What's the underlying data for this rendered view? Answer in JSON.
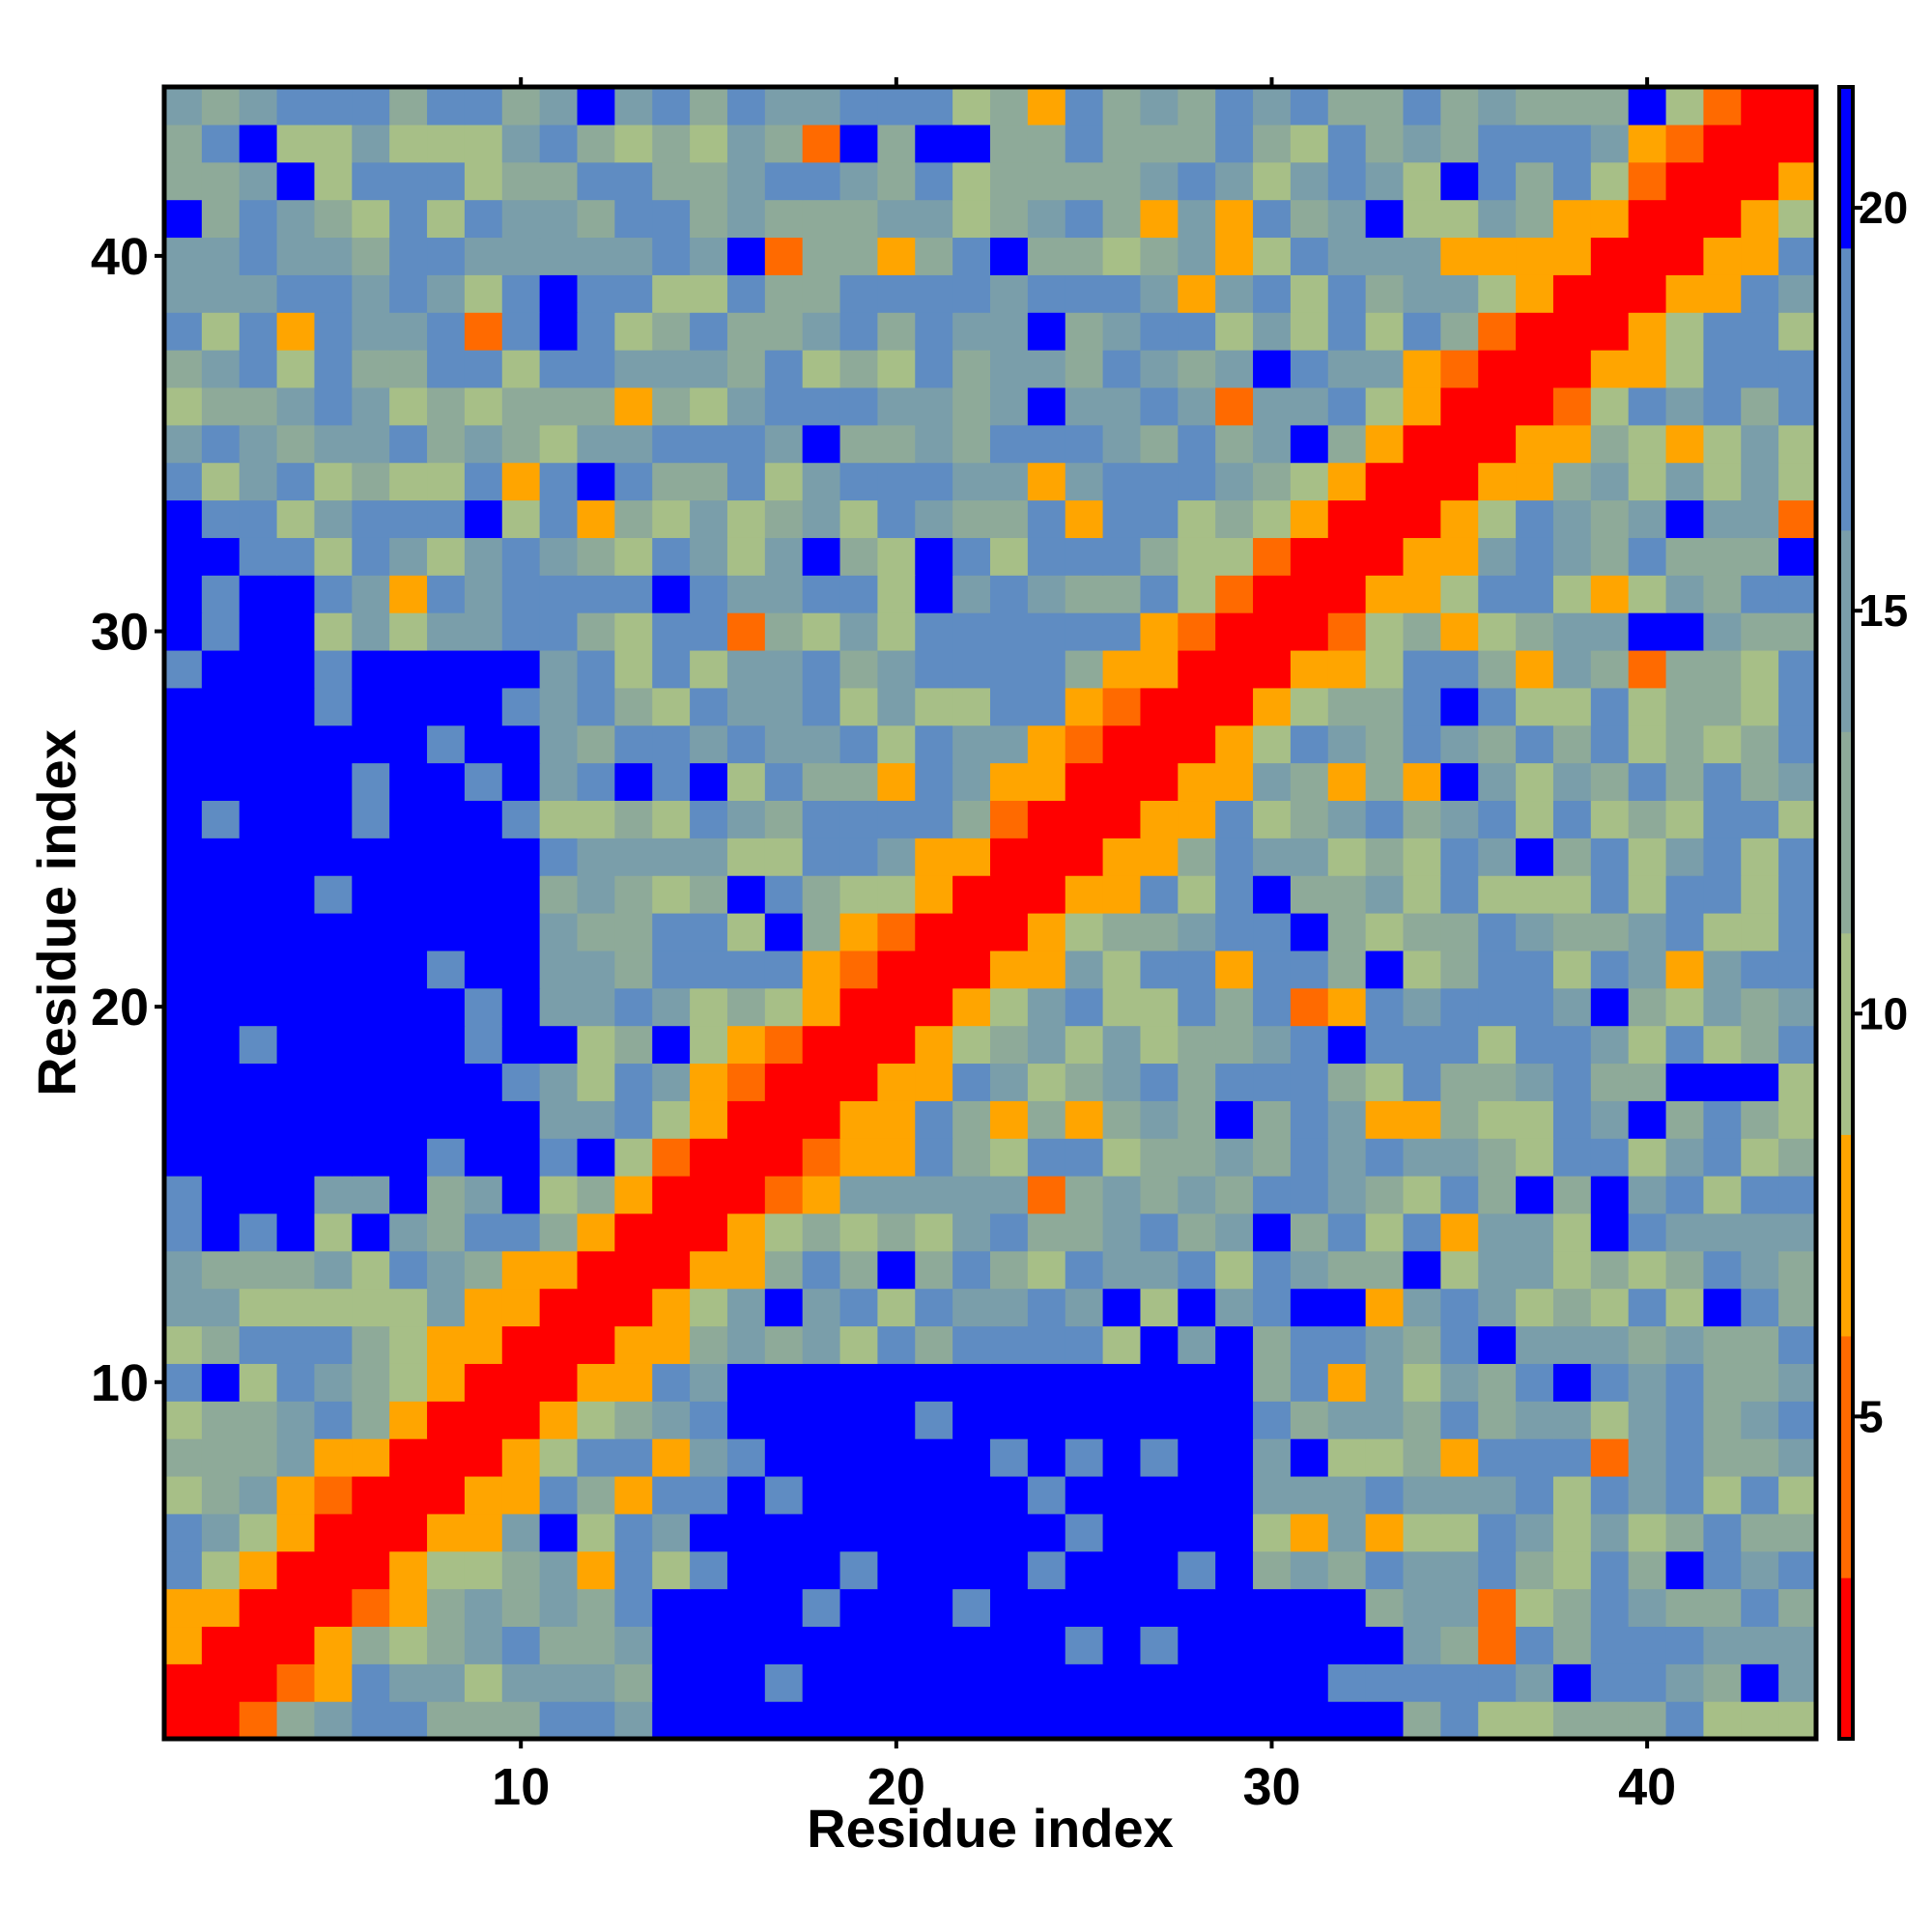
{
  "chart_data": {
    "type": "heatmap",
    "title": "",
    "xlabel": "Residue index",
    "ylabel": "Residue index",
    "n": 44,
    "xlim": [
      1,
      44
    ],
    "ylim": [
      1,
      44
    ],
    "x_ticks": [
      10,
      20,
      30,
      40
    ],
    "y_ticks": [
      10,
      20,
      30,
      40
    ],
    "colorbar": {
      "ticks": [
        5,
        10,
        15,
        20
      ],
      "range": [
        1,
        21.5
      ],
      "colors": [
        "#ff0000",
        "#ff6a00",
        "#ffa500",
        "#a7bf87",
        "#8eaa99",
        "#7a9eaa",
        "#5f8cc2",
        "#0000ff"
      ],
      "bins": [
        1,
        3,
        6,
        8.5,
        11,
        13.5,
        16,
        19.5,
        21.5
      ]
    },
    "value_scale": {
      "diagonal_band": 2.8,
      "near_band": 7.5,
      "background_min": 9.5,
      "background_max": 19.0,
      "far_contact": 21.0
    },
    "blue_blocks": [
      {
        "rows": [
          14,
          33
        ],
        "cols": [
          1,
          3
        ]
      },
      {
        "rows": [
          18,
          29
        ],
        "cols": [
          3,
          9
        ]
      },
      {
        "rows": [
          1,
          4
        ],
        "cols": [
          14,
          32
        ]
      },
      {
        "rows": [
          3,
          10
        ],
        "cols": [
          16,
          29
        ]
      },
      {
        "rows": [
          1,
          2
        ],
        "cols": [
          16,
          23
        ]
      }
    ],
    "grid": false,
    "legend": "none"
  }
}
